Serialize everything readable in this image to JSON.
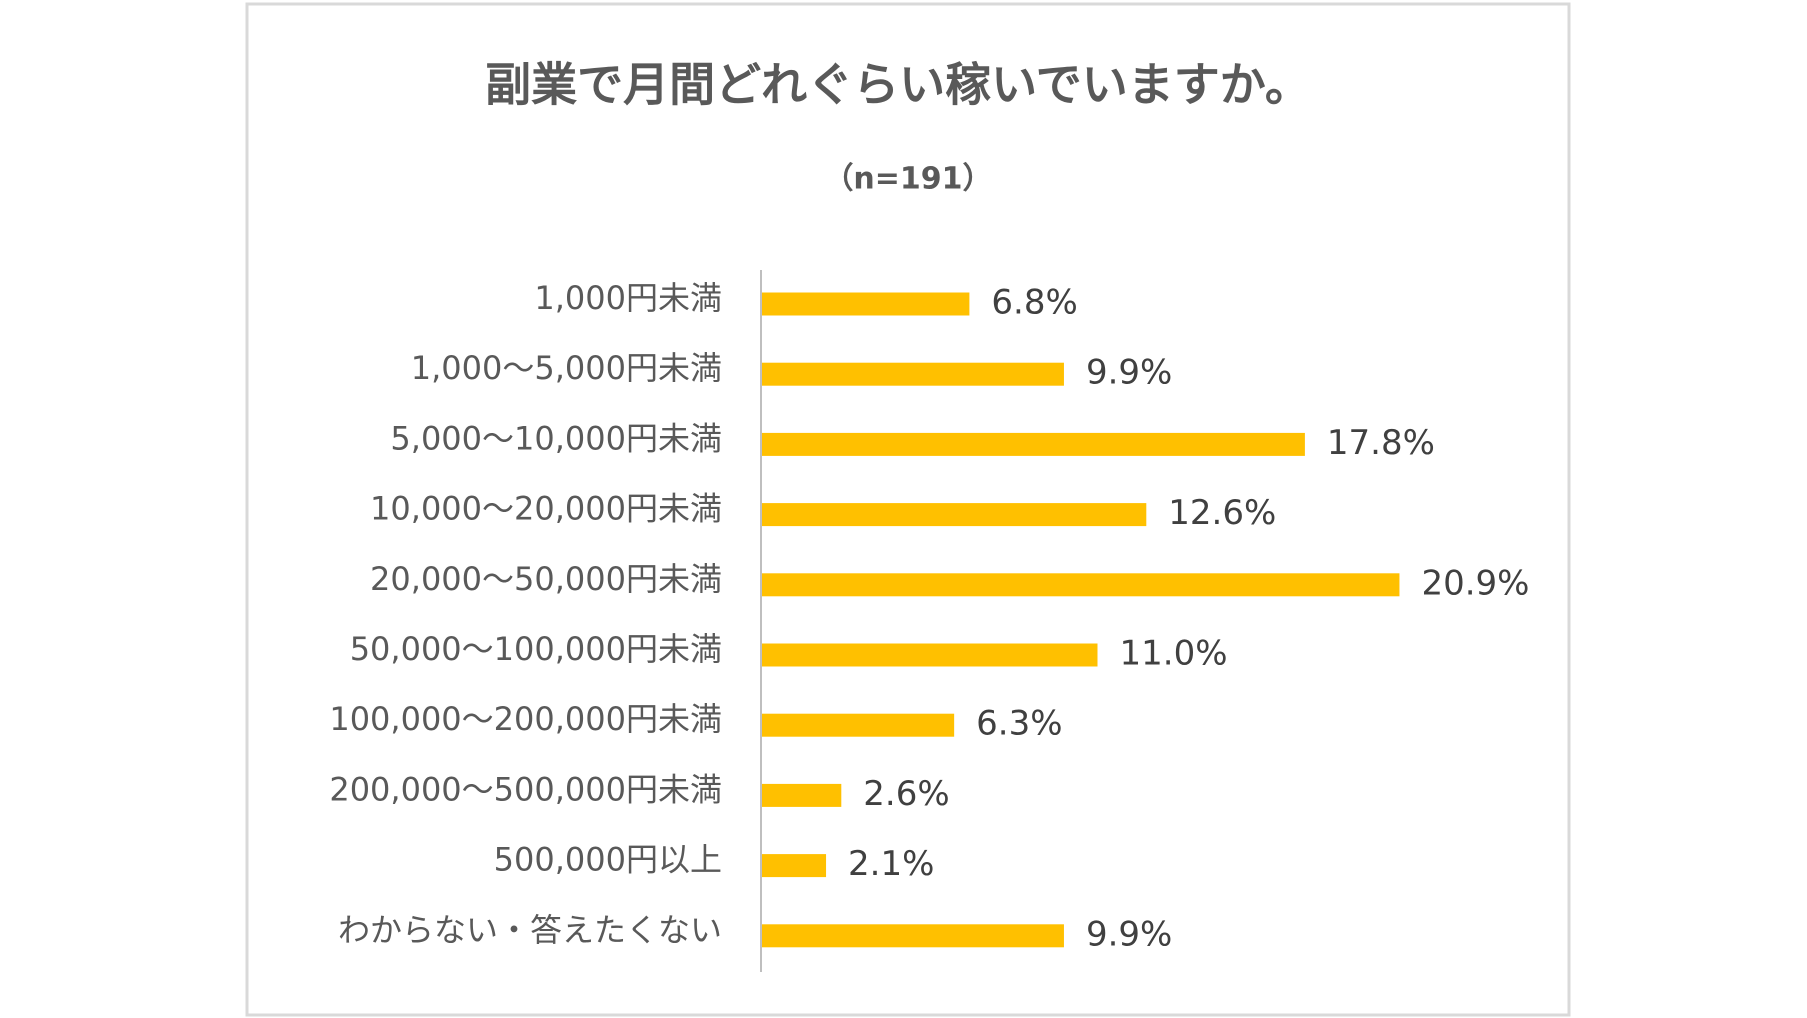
{
  "chart_data": {
    "type": "bar",
    "orientation": "horizontal",
    "title": "副業で月間どれぐらい稼いでいますか。",
    "subtitle": "（n=191）",
    "categories": [
      "1,000円未満",
      "1,000～5,000円未満",
      "5,000～10,000円未満",
      "10,000～20,000円未満",
      "20,000～50,000円未満",
      "50,000～100,000円未満",
      "100,000～200,000円未満",
      "200,000～500,000円未満",
      "500,000円以上",
      "わからない・答えたくない"
    ],
    "values": [
      6.8,
      9.9,
      17.8,
      12.6,
      20.9,
      11.0,
      6.3,
      2.6,
      2.1,
      9.9
    ],
    "value_labels": [
      "6.8%",
      "9.9%",
      "17.8%",
      "12.6%",
      "20.9%",
      "11.0%",
      "6.3%",
      "2.6%",
      "2.1%",
      "9.9%"
    ],
    "color": "#ffc000"
  }
}
